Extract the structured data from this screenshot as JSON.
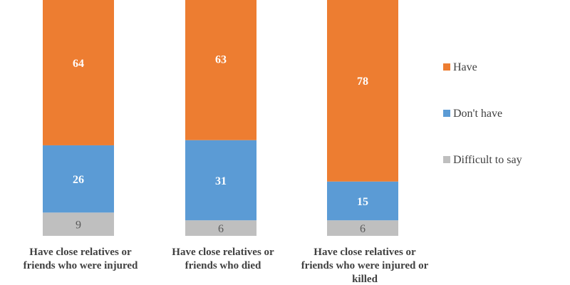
{
  "chart_data": {
    "type": "bar",
    "stacked": true,
    "categories": [
      [
        "Have close relatives or",
        "friends who were injured"
      ],
      [
        "Have close relatives or",
        "friends who died"
      ],
      [
        "Have close relatives or",
        "friends who were injured or",
        "killed"
      ]
    ],
    "series": [
      {
        "name": "Difficult to say",
        "values": [
          9,
          6,
          6
        ],
        "color": "#bfbfbf",
        "label_style": "dark"
      },
      {
        "name": "Don't have",
        "values": [
          26,
          31,
          15
        ],
        "color": "#5b9bd5",
        "label_style": "light"
      },
      {
        "name": "Have",
        "values": [
          64,
          63,
          78
        ],
        "color": "#ed7d31",
        "label_style": "light"
      }
    ],
    "legend": {
      "position": "right",
      "order": [
        "Have",
        "Don't have",
        "Difficult to say"
      ]
    },
    "grid": false
  }
}
